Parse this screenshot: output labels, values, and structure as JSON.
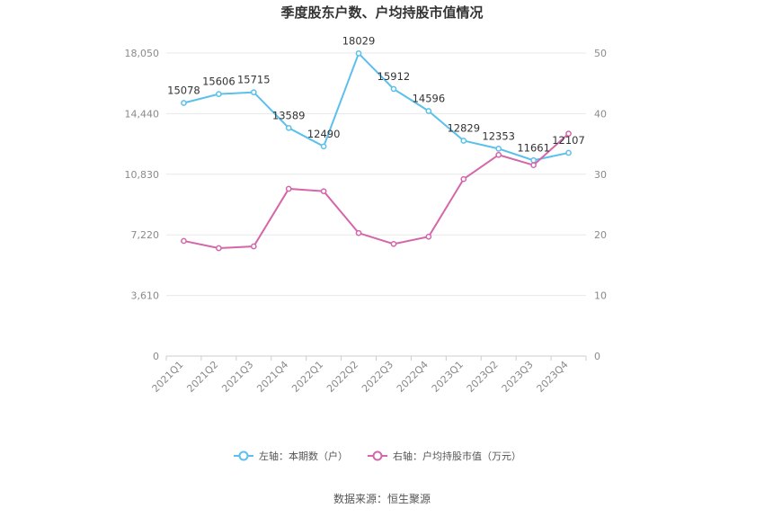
{
  "chart_data": {
    "type": "line",
    "title": "季度股东户数、户均持股市值情况",
    "categories": [
      "2021Q1",
      "2021Q2",
      "2021Q3",
      "2021Q4",
      "2022Q1",
      "2022Q2",
      "2022Q3",
      "2022Q4",
      "2023Q1",
      "2023Q2",
      "2023Q3",
      "2023Q4"
    ],
    "left_axis": {
      "min": 0,
      "max": 18050,
      "ticks": [
        "0",
        "3,610",
        "7,220",
        "10,830",
        "14,440",
        "18,050"
      ]
    },
    "right_axis": {
      "min": 0,
      "max": 50,
      "ticks": [
        "0",
        "10",
        "20",
        "30",
        "40",
        "50"
      ]
    },
    "series": [
      {
        "name": "左轴：本期数（户）",
        "axis": "left",
        "color": "#5bc0eb",
        "values": [
          15078,
          15606,
          15715,
          13589,
          12490,
          18029,
          15912,
          14596,
          12829,
          12353,
          11661,
          12107
        ],
        "show_labels": true
      },
      {
        "name": "右轴：户均持股市值（万元）",
        "axis": "right",
        "color": "#d466a9",
        "values": [
          19.0,
          17.8,
          18.1,
          27.6,
          27.2,
          20.3,
          18.5,
          19.7,
          29.2,
          33.2,
          31.5,
          36.7
        ],
        "show_labels": false
      }
    ],
    "grid": true,
    "legend_position": "bottom-center"
  },
  "source_text": "数据来源：恒生聚源"
}
